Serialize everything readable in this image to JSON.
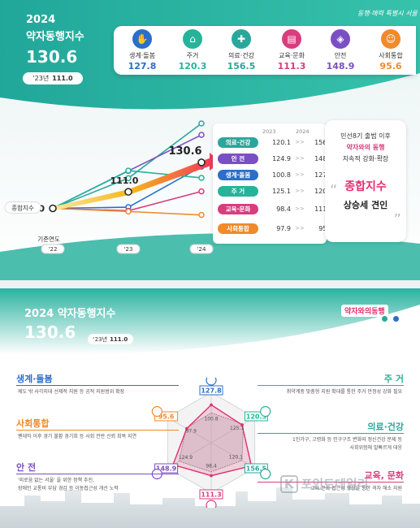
{
  "top": {
    "year": "2024",
    "title": "약자동행지수",
    "score": "130.6",
    "prev_label": "'23년",
    "prev_value": "111.0",
    "logo": "동행·매력 특별시 서울",
    "categories": [
      {
        "label": "생계·돌봄",
        "value": "127.8",
        "color": "#2a6fc9",
        "icon": "hands-icon"
      },
      {
        "label": "주거",
        "value": "120.3",
        "color": "#26b39a",
        "icon": "house-icon"
      },
      {
        "label": "의료·건강",
        "value": "156.5",
        "color": "#2aa79b",
        "icon": "health-icon"
      },
      {
        "label": "교육·문화",
        "value": "111.3",
        "color": "#d83d7e",
        "icon": "book-icon"
      },
      {
        "label": "안전",
        "value": "148.9",
        "color": "#7a4fc4",
        "icon": "shield-icon"
      },
      {
        "label": "사회통합",
        "value": "95.6",
        "color": "#f08a2a",
        "icon": "people-icon"
      }
    ],
    "composite_label": "종합지수",
    "base_year_label": "기준연도",
    "x_labels": [
      "'22",
      "'23",
      "'24"
    ],
    "composite_values": [
      "100",
      "111.0",
      "130.6"
    ],
    "table_headers": [
      "2023",
      "2024"
    ],
    "table_rows": [
      {
        "label": "의료·건강",
        "v2023": "120.1",
        "v2024": "156.5",
        "color": "#2aa79b"
      },
      {
        "label": "안 전",
        "v2023": "124.9",
        "v2024": "148.9",
        "color": "#7a4fc4"
      },
      {
        "label": "생계·돌봄",
        "v2023": "100.8",
        "v2024": "127.8",
        "color": "#2a6fc9"
      },
      {
        "label": "주 거",
        "v2023": "125.1",
        "v2024": "120.3",
        "color": "#26b39a"
      },
      {
        "label": "교육·문화",
        "v2023": "98.4",
        "v2024": "111.3",
        "color": "#d83d7e"
      },
      {
        "label": "사회통합",
        "v2023": "97.9",
        "v2024": "95.6",
        "color": "#f08a2a"
      }
    ],
    "arrow_sep": ">>",
    "callout_line1": "민선8기 출범 이후",
    "callout_line2": "약자와의 동행",
    "callout_line3": "지속적 강화·확장",
    "callout_highlight": "종합지수",
    "callout_line4": "상승세 견인"
  },
  "bottom": {
    "title": "2024 약자동행지수",
    "score": "130.6",
    "prev_label": "'23년",
    "prev_value": "111.0",
    "logo": "약자와의동행",
    "left_items": [
      {
        "title": "생계·돌봄",
        "desc": [
          "제도 밖 사각지대 선제적 지원 등 공적 지원범위 확장"
        ],
        "color": "#2a6fc9"
      },
      {
        "title": "사회통합",
        "desc": [
          "팬데믹 이후 경기 불황 경기회 등 사회 전반 신뢰 회복 지연"
        ],
        "color": "#f08a2a"
      },
      {
        "title": "안 전",
        "desc": [
          "'외로움 없는 서울' 을 위한 정책 추진,",
          "장애인 교통비 부담 경감 등 이동접근성 개선 노력"
        ],
        "color": "#7a4fc4"
      }
    ],
    "right_items": [
      {
        "title": "주 거",
        "desc": [
          "취약계층 맞춤형 지원 확대를 통한 주거 안정성 강화 필요"
        ],
        "color": "#26b39a"
      },
      {
        "title": "의료·건강",
        "desc": [
          "1인가구, 고령화 등 인구구조 변화와 정신건강 문제 등",
          "사회위험에 발빠르게 대응"
        ],
        "color": "#2aa79b"
      },
      {
        "title": "교육, 문화",
        "desc": [
          "교육·문화 접근성 향상을 통한 격차 해소 지원"
        ],
        "color": "#d83d7e"
      }
    ],
    "watermark": "포인트데일리"
  },
  "chart_data": [
    {
      "type": "line",
      "x": [
        "'22",
        "'23",
        "'24"
      ],
      "series": [
        {
          "name": "종합지수",
          "values": [
            100,
            111.0,
            130.6
          ]
        },
        {
          "name": "의료·건강",
          "values": [
            100,
            120.1,
            156.5
          ]
        },
        {
          "name": "안 전",
          "values": [
            100,
            124.9,
            148.9
          ]
        },
        {
          "name": "생계·돌봄",
          "values": [
            100,
            100.8,
            127.8
          ]
        },
        {
          "name": "주 거",
          "values": [
            100,
            125.1,
            120.3
          ]
        },
        {
          "name": "교육·문화",
          "values": [
            100,
            98.4,
            111.3
          ]
        },
        {
          "name": "사회통합",
          "values": [
            100,
            97.9,
            95.6
          ]
        }
      ]
    },
    {
      "type": "radar",
      "categories": [
        "생계·돌봄",
        "주거",
        "의료·건강",
        "교육·문화",
        "안전",
        "사회통합"
      ],
      "series": [
        {
          "name": "2023",
          "values": [
            100.8,
            125.1,
            120.1,
            98.4,
            124.9,
            97.9
          ]
        },
        {
          "name": "2024",
          "values": [
            127.8,
            120.3,
            156.5,
            111.3,
            148.9,
            95.6
          ]
        }
      ],
      "rmax": 170
    }
  ]
}
